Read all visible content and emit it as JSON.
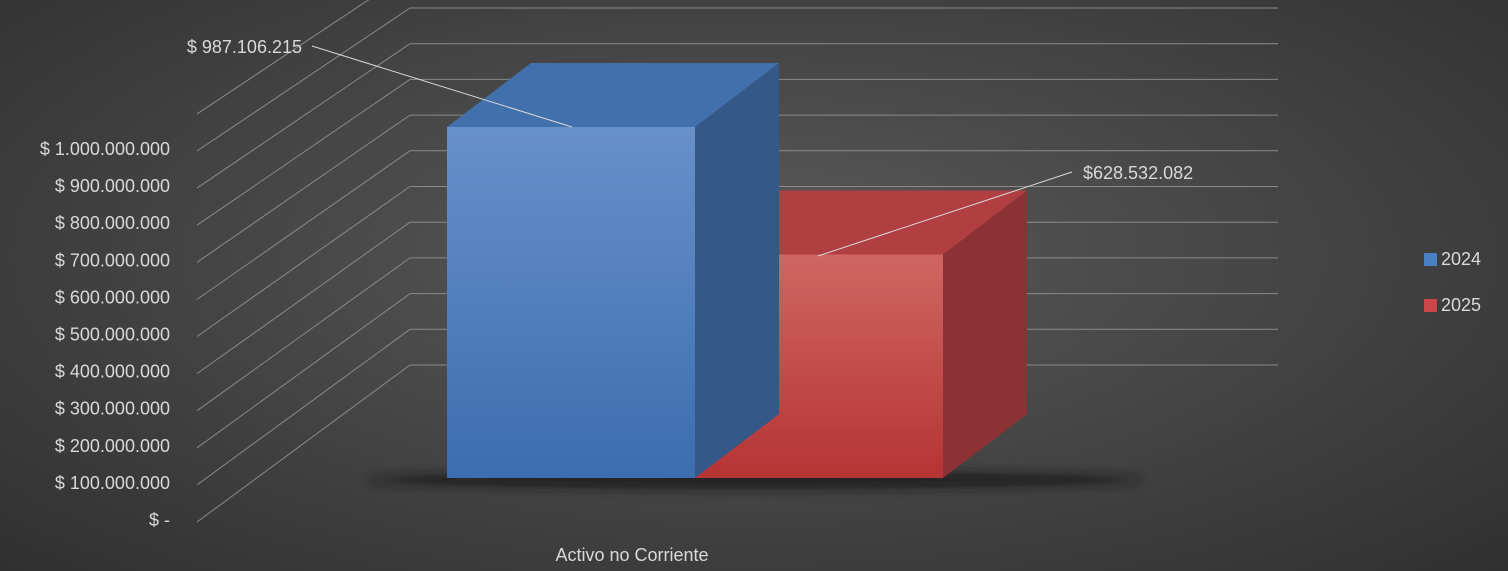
{
  "chart_data": {
    "type": "bar",
    "categories": [
      "Activo no Corriente"
    ],
    "series": [
      {
        "name": "2024",
        "values": [
          987106215
        ],
        "label": "$ 987.106.215",
        "color": "#4a7fc4"
      },
      {
        "name": "2025",
        "values": [
          628532082
        ],
        "label": "$628.532.082",
        "color": "#c9474a"
      }
    ],
    "ylim": [
      0,
      1000000000
    ],
    "yticks": [
      0,
      100000000,
      200000000,
      300000000,
      400000000,
      500000000,
      600000000,
      700000000,
      800000000,
      900000000,
      1000000000
    ],
    "ytick_labels": [
      "$ -",
      "$ 100.000.000",
      "$ 200.000.000",
      "$ 300.000.000",
      "$ 400.000.000",
      "$ 500.000.000",
      "$ 600.000.000",
      "$ 700.000.000",
      "$ 800.000.000",
      "$ 900.000.000",
      "$ 1.000.000.000"
    ],
    "grid": true,
    "legend_position": "right",
    "style": "3d-column"
  }
}
